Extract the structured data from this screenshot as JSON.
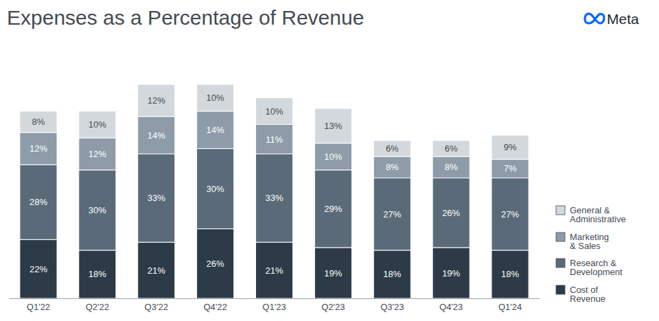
{
  "chart_data": {
    "type": "bar",
    "title": "Expenses as a Percentage of Revenue",
    "annotations": [
      {
        "text": "Meta"
      }
    ],
    "categories": [
      "Q1'22",
      "Q2'22",
      "Q3'22",
      "Q4'22",
      "Q1'23",
      "Q2'23",
      "Q3'23",
      "Q4'23",
      "Q1'24"
    ],
    "series": [
      {
        "name": "Cost of Revenue",
        "color": "#2c3b47",
        "values": [
          22,
          18,
          21,
          26,
          21,
          19,
          18,
          19,
          18
        ],
        "value_labels": [
          "22%",
          "18%",
          "21%",
          "26%",
          "21%",
          "19%",
          "18%",
          "19%",
          "18%"
        ]
      },
      {
        "name": "Research & Development",
        "color": "#5a6a79",
        "values": [
          28,
          30,
          33,
          30,
          33,
          29,
          27,
          26,
          27
        ],
        "value_labels": [
          "28%",
          "30%",
          "33%",
          "30%",
          "33%",
          "29%",
          "27%",
          "26%",
          "27%"
        ]
      },
      {
        "name": "Marketing & Sales",
        "color": "#8e9ca9",
        "values": [
          12,
          12,
          14,
          14,
          11,
          10,
          8,
          8,
          7
        ],
        "value_labels": [
          "12%",
          "12%",
          "14%",
          "14%",
          "11%",
          "10%",
          "8%",
          "8%",
          "7%"
        ]
      },
      {
        "name": "General & Administrative",
        "color": "#d3d8dc",
        "values": [
          8,
          10,
          12,
          10,
          10,
          13,
          6,
          6,
          9
        ],
        "value_labels": [
          "8%",
          "10%",
          "12%",
          "10%",
          "10%",
          "13%",
          "6%",
          "6%",
          "9%"
        ]
      }
    ],
    "ylim": [
      0,
      80
    ],
    "stacked": true,
    "data_labels": true,
    "tick_labels": "x",
    "legend": "right"
  }
}
